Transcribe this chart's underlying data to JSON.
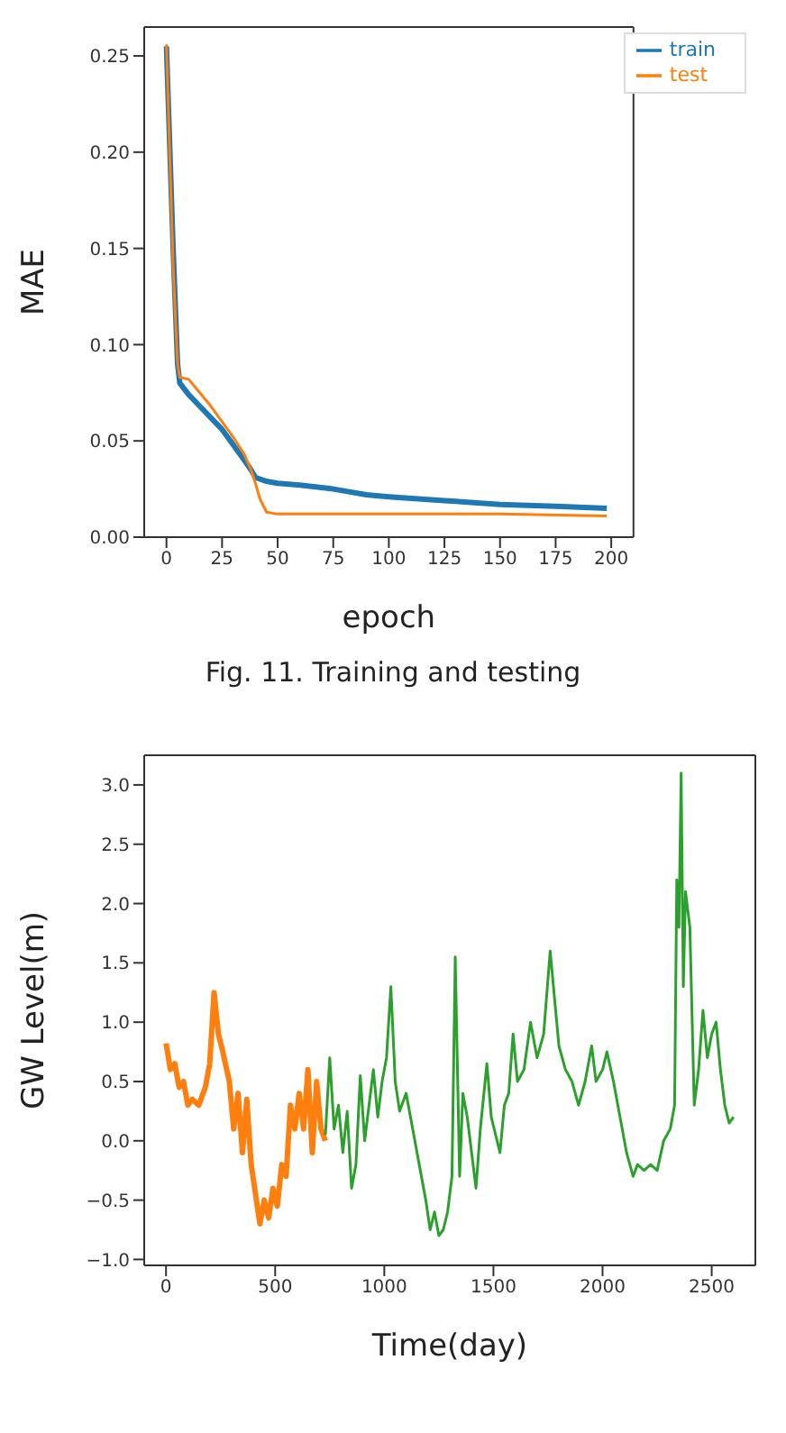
{
  "chart_data": [
    {
      "type": "line",
      "xlabel": "epoch",
      "ylabel": "MAE",
      "annotations": [
        "Fig. 11. Training and testing"
      ],
      "xlim": [
        -10,
        210
      ],
      "ylim": [
        0,
        0.265
      ],
      "xticks": [
        0,
        25,
        50,
        75,
        100,
        125,
        150,
        175,
        200
      ],
      "yticks": [
        {
          "value": 0,
          "label": "0.00"
        },
        {
          "value": 0.05,
          "label": "0.05"
        },
        {
          "value": 0.1,
          "label": "0.10"
        },
        {
          "value": 0.15,
          "label": "0.15"
        },
        {
          "value": 0.2,
          "label": "0.20"
        },
        {
          "value": 0.25,
          "label": "0.25"
        }
      ],
      "legend": "top right",
      "grid": false,
      "series": [
        {
          "name": "train",
          "color": "#1f77b4",
          "x": [
            0,
            3,
            5,
            6,
            10,
            15,
            20,
            25,
            30,
            35,
            38,
            40,
            45,
            50,
            60,
            75,
            90,
            100,
            125,
            150,
            175,
            198
          ],
          "values": [
            0.255,
            0.15,
            0.09,
            0.08,
            0.074,
            0.068,
            0.062,
            0.056,
            0.048,
            0.04,
            0.035,
            0.031,
            0.029,
            0.028,
            0.027,
            0.025,
            0.022,
            0.021,
            0.019,
            0.017,
            0.016,
            0.015
          ]
        },
        {
          "name": "test",
          "color": "#ff7f0e",
          "x": [
            0,
            3,
            5,
            6,
            10,
            15,
            20,
            25,
            30,
            35,
            38,
            40,
            42,
            45,
            50,
            75,
            100,
            150,
            198
          ],
          "values": [
            0.256,
            0.14,
            0.09,
            0.083,
            0.082,
            0.075,
            0.068,
            0.06,
            0.052,
            0.043,
            0.035,
            0.028,
            0.02,
            0.013,
            0.012,
            0.012,
            0.012,
            0.012,
            0.011
          ]
        }
      ]
    },
    {
      "type": "line",
      "xlabel": "Time(day)",
      "ylabel": "GW Level(m)",
      "xlim": [
        -100,
        2700
      ],
      "ylim": [
        -1.05,
        3.25
      ],
      "xticks": [
        0,
        500,
        1000,
        1500,
        2000,
        2500
      ],
      "yticks": [
        {
          "value": -1,
          "label": "−1.0"
        },
        {
          "value": -0.5,
          "label": "−0.5"
        },
        {
          "value": 0,
          "label": "0.0"
        },
        {
          "value": 0.5,
          "label": "0.5"
        },
        {
          "value": 1,
          "label": "1.0"
        },
        {
          "value": 1.5,
          "label": "1.5"
        },
        {
          "value": 2,
          "label": "2.0"
        },
        {
          "value": 2.5,
          "label": "2.5"
        },
        {
          "value": 3,
          "label": "3.0"
        }
      ],
      "legend": false,
      "grid": false,
      "series": [
        {
          "color": "#ff7f0e",
          "x": [
            0,
            20,
            40,
            60,
            80,
            100,
            120,
            150,
            180,
            200,
            220,
            240,
            260,
            290,
            310,
            330,
            350,
            370,
            390,
            410,
            430,
            450,
            470,
            490,
            510,
            530,
            550,
            570,
            590,
            610,
            630,
            650,
            670,
            690,
            710,
            730
          ],
          "values": [
            0.82,
            0.6,
            0.65,
            0.45,
            0.5,
            0.3,
            0.35,
            0.3,
            0.45,
            0.65,
            1.25,
            0.9,
            0.75,
            0.5,
            0.1,
            0.4,
            -0.1,
            0.35,
            -0.2,
            -0.45,
            -0.7,
            -0.5,
            -0.65,
            -0.4,
            -0.55,
            -0.2,
            -0.3,
            0.3,
            0.1,
            0.4,
            0.1,
            0.6,
            -0.1,
            0.5,
            0.1,
            0.0
          ]
        },
        {
          "color": "#2ca02c",
          "x": [
            730,
            750,
            770,
            790,
            810,
            830,
            850,
            870,
            890,
            910,
            930,
            950,
            970,
            990,
            1010,
            1030,
            1050,
            1070,
            1100,
            1130,
            1160,
            1190,
            1210,
            1230,
            1250,
            1270,
            1290,
            1310,
            1325,
            1345,
            1360,
            1380,
            1400,
            1420,
            1440,
            1470,
            1490,
            1510,
            1530,
            1550,
            1570,
            1590,
            1610,
            1640,
            1670,
            1700,
            1730,
            1760,
            1780,
            1800,
            1830,
            1860,
            1890,
            1920,
            1950,
            1970,
            2000,
            2020,
            2050,
            2080,
            2110,
            2140,
            2160,
            2190,
            2220,
            2250,
            2280,
            2310,
            2330,
            2340,
            2350,
            2360,
            2370,
            2380,
            2400,
            2420,
            2440,
            2460,
            2480,
            2500,
            2520,
            2540,
            2560,
            2580,
            2600
          ],
          "values": [
            0.05,
            0.7,
            0.1,
            0.3,
            -0.1,
            0.25,
            -0.4,
            -0.2,
            0.55,
            0.0,
            0.3,
            0.6,
            0.2,
            0.5,
            0.7,
            1.3,
            0.5,
            0.25,
            0.4,
            0.1,
            -0.2,
            -0.5,
            -0.75,
            -0.6,
            -0.8,
            -0.75,
            -0.6,
            -0.3,
            1.55,
            -0.3,
            0.4,
            0.2,
            -0.1,
            -0.4,
            0.1,
            0.65,
            0.2,
            0.05,
            -0.1,
            0.3,
            0.4,
            0.9,
            0.5,
            0.6,
            1.0,
            0.7,
            0.9,
            1.6,
            1.2,
            0.8,
            0.6,
            0.5,
            0.3,
            0.5,
            0.8,
            0.5,
            0.6,
            0.75,
            0.5,
            0.2,
            -0.1,
            -0.3,
            -0.2,
            -0.25,
            -0.2,
            -0.25,
            0.0,
            0.1,
            0.3,
            2.2,
            1.8,
            3.1,
            1.3,
            2.1,
            1.8,
            0.3,
            0.6,
            1.1,
            0.7,
            0.9,
            1.0,
            0.6,
            0.3,
            0.15,
            0.2
          ]
        }
      ]
    }
  ]
}
